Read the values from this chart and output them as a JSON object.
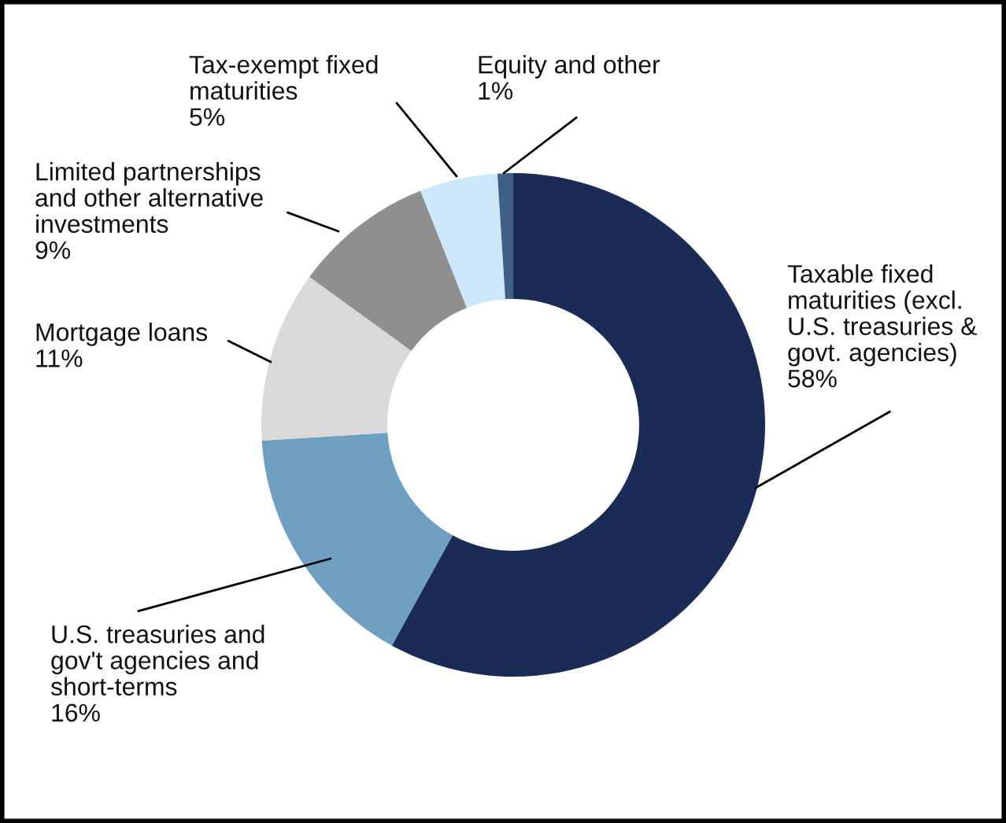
{
  "chart_data": {
    "type": "donut",
    "categories": [
      "Taxable fixed\nmaturities (excl.\nU.S. treasuries &\ngovt. agencies)",
      "U.S. treasuries and\ngov't agencies and\nshort-terms",
      "Mortgage loans",
      "Limited partnerships\nand other alternative\ninvestments",
      "Tax-exempt fixed\nmaturities",
      "Equity and other"
    ],
    "values": [
      58,
      16,
      11,
      9,
      5,
      1
    ],
    "value_labels": [
      "58%",
      "16%",
      "11%",
      "9%",
      "5%",
      "1%"
    ],
    "colors": [
      "#1b2b57",
      "#6fa0c4",
      "#d9d9d9",
      "#8f8f8f",
      "#cde8fb",
      "#3f5f86"
    ]
  }
}
